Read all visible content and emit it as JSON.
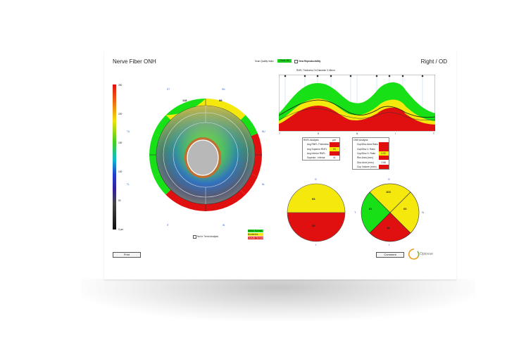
{
  "header": {
    "title": "Nerve Fiber ONH",
    "scan_quality_label": "Scan Quality Index",
    "scan_quality_value": "Good: 68",
    "view_reproducibility": "View Reproducibility",
    "eye": "Right / OD"
  },
  "colorbar": {
    "ticks": [
      "250",
      "200",
      "150",
      "100",
      "50",
      "0 μm"
    ]
  },
  "sector_map": {
    "sectors": [
      {
        "label": "ST",
        "value": "118"
      },
      {
        "label": "SN",
        "value": "88"
      },
      {
        "label": "NU",
        "value": ""
      },
      {
        "label": "NL",
        "value": ""
      },
      {
        "label": "IN",
        "value": ""
      },
      {
        "label": "IT",
        "value": ""
      },
      {
        "label": "TL",
        "value": ""
      },
      {
        "label": "TU",
        "value": ""
      }
    ]
  },
  "checkbox_trend": "Not in Trend Analysis",
  "legend": [
    "Within Normal",
    "Borderline",
    "Outside Normal"
  ],
  "tsnit": {
    "title": "RNFL Thickness On Diameter 3.45mm",
    "x_labels": [
      "T",
      "S",
      "N",
      "I",
      "T"
    ]
  },
  "rnfl_table": {
    "header": "RNFL Analysis",
    "unit": "μm",
    "rows": [
      {
        "label": "Avg RNFL Thickness",
        "value": "",
        "color": "#e01010"
      },
      {
        "label": "Avg Superior RNFL",
        "value": "93",
        "color": "#f4e80c"
      },
      {
        "label": "Avg Inferior RNFL",
        "value": "",
        "color": "#e01010"
      },
      {
        "label": "Superior - Inferior",
        "value": "41",
        "color": "#ffffff"
      }
    ]
  },
  "onh_table": {
    "header": "ONH Analysis",
    "rows": [
      {
        "label": "Cup/Disc Area Ratio",
        "value": "",
        "color": "#e01010"
      },
      {
        "label": "Cup/Disc V. Ratio",
        "value": "",
        "color": "#e01010"
      },
      {
        "label": "Cup/Disc H. Ratio",
        "value": "0.92",
        "color": "#f4e80c"
      },
      {
        "label": "Rim Area (mm²)",
        "value": "",
        "color": "#e01010"
      },
      {
        "label": "Disc Area (mm²)",
        "value": "2.66",
        "color": "#ffffff"
      },
      {
        "label": "Cup Volume (mm³)",
        "value": "",
        "color": "#e01010"
      }
    ]
  },
  "hemi_pie": {
    "top_label": "S",
    "bottom_label": "I",
    "superior": "93",
    "inferior": "52"
  },
  "quad_pie": {
    "top_label": "S",
    "bottom_label": "I",
    "left_label": "T",
    "right_label": "N",
    "superior": "103",
    "nasal": "60",
    "inferior": "46",
    "temporal": "81"
  },
  "buttons": {
    "print": "Print",
    "comment": "Comment"
  },
  "brand": "Optovue",
  "colors": {
    "normal": "#17e017",
    "borderline": "#f4e80c",
    "outside": "#e01010"
  }
}
